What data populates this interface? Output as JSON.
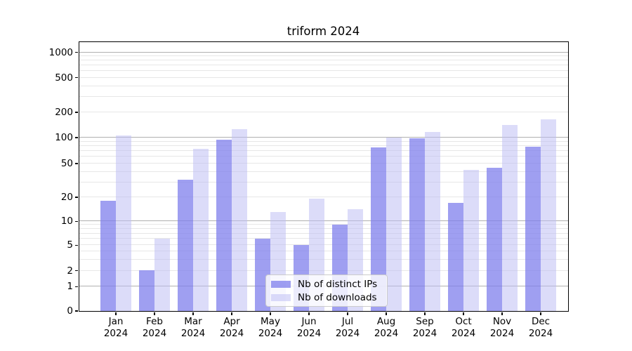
{
  "title": "triform 2024",
  "chart_data": {
    "type": "bar",
    "title": "triform 2024",
    "categories": [
      "Jan",
      "Feb",
      "Mar",
      "Apr",
      "May",
      "Jun",
      "Jul",
      "Aug",
      "Sep",
      "Oct",
      "Nov",
      "Dec"
    ],
    "category_year": "2024",
    "series": [
      {
        "name": "Nb of distinct IPs",
        "color_hex": "#9e9ef0",
        "fill": "rgba(125,125,236,0.74)",
        "values": [
          18,
          2,
          32,
          94,
          6,
          5,
          9,
          76,
          97,
          17,
          44,
          77
        ]
      },
      {
        "name": "Nb of downloads",
        "color_hex": "#dcdcf9",
        "fill": "rgba(188,188,243,0.52)",
        "values": [
          105,
          6,
          73,
          125,
          13,
          19,
          14,
          100,
          115,
          42,
          140,
          165
        ]
      }
    ],
    "y_axis": {
      "ticks": [
        0,
        1,
        2,
        5,
        10,
        20,
        50,
        100,
        200,
        500,
        1000
      ],
      "scale": "log-compressed-below-10",
      "ylim": [
        0,
        1400
      ]
    },
    "x_axis": {
      "tick_label_line2": "2024"
    },
    "legend": {
      "position": "lower-center",
      "entries": [
        "Nb of distinct IPs",
        "Nb of downloads"
      ]
    },
    "grid": true,
    "colors": {
      "major_gridline": "#b0b0b0",
      "minor_gridline": "#e7e7e7",
      "spine": "#000000"
    }
  }
}
